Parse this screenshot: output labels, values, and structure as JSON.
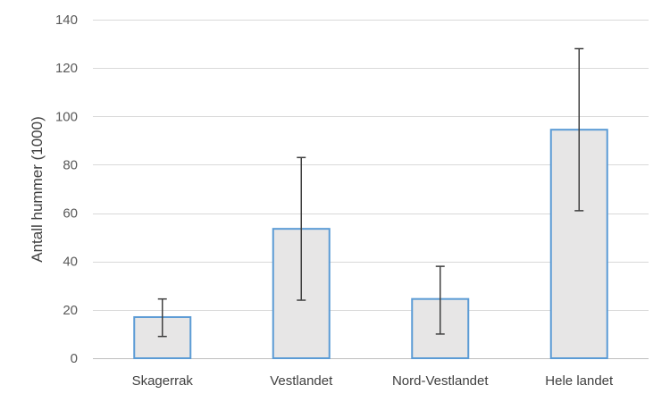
{
  "chart_data": {
    "type": "bar",
    "title": "",
    "xlabel": "",
    "ylabel": "Antall hummer (1000)",
    "ylim": [
      0,
      140
    ],
    "yticks": [
      0,
      20,
      40,
      60,
      80,
      100,
      120,
      140
    ],
    "grid": true,
    "categories": [
      "Skagerrak",
      "Vestlandet",
      "Nord-Vestlandet",
      "Hele landet"
    ],
    "values": [
      17,
      53.5,
      24.5,
      94.5
    ],
    "error_low": [
      9,
      24,
      10,
      61
    ],
    "error_high": [
      24.5,
      83,
      38,
      128
    ],
    "colors": {
      "bar_fill": "#e7e6e6",
      "bar_stroke": "#5b9bd5",
      "error_bar": "#404040",
      "grid": "#d9d9d9"
    }
  }
}
